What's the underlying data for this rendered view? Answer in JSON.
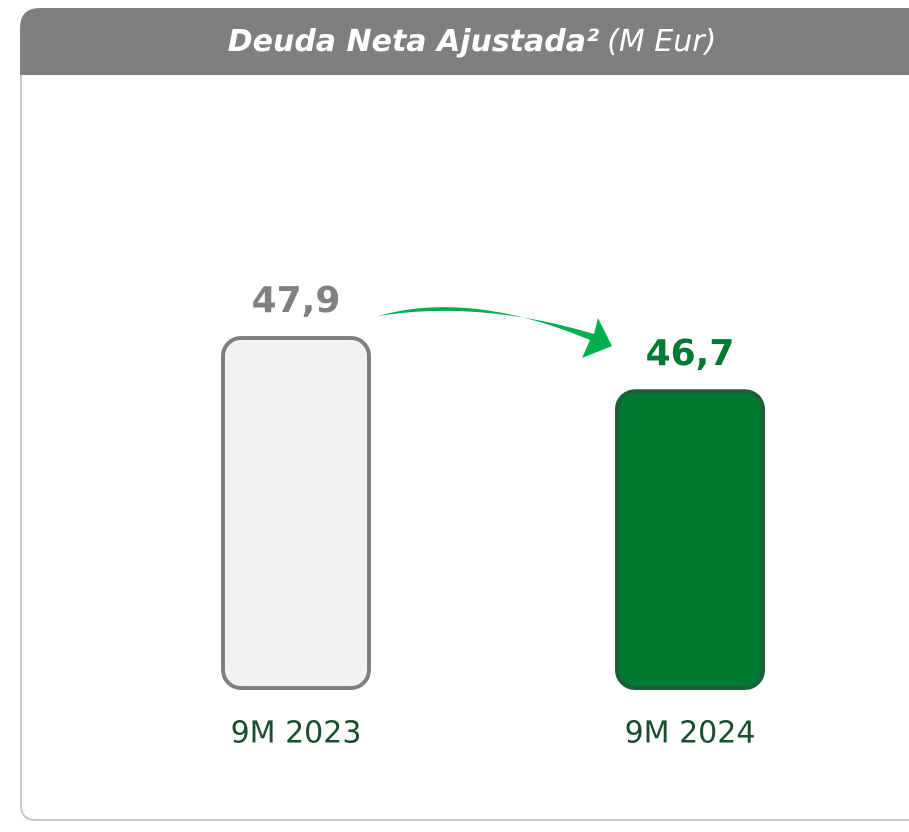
{
  "chart_data": {
    "type": "bar",
    "title": "Deuda Neta Ajustada²",
    "subtitle": "(M Eur)",
    "categories": [
      "9M 2023",
      "9M 2024"
    ],
    "values": [
      47.9,
      46.7
    ],
    "value_labels": [
      "47,9",
      "46,7"
    ],
    "colors": [
      "#f2f2f2",
      "#007a33"
    ],
    "edge_colors": [
      "#808080",
      "#1d5e3a"
    ],
    "label_colors": [
      "#808080",
      "#007a33"
    ],
    "ylim": [
      40,
      50
    ]
  }
}
